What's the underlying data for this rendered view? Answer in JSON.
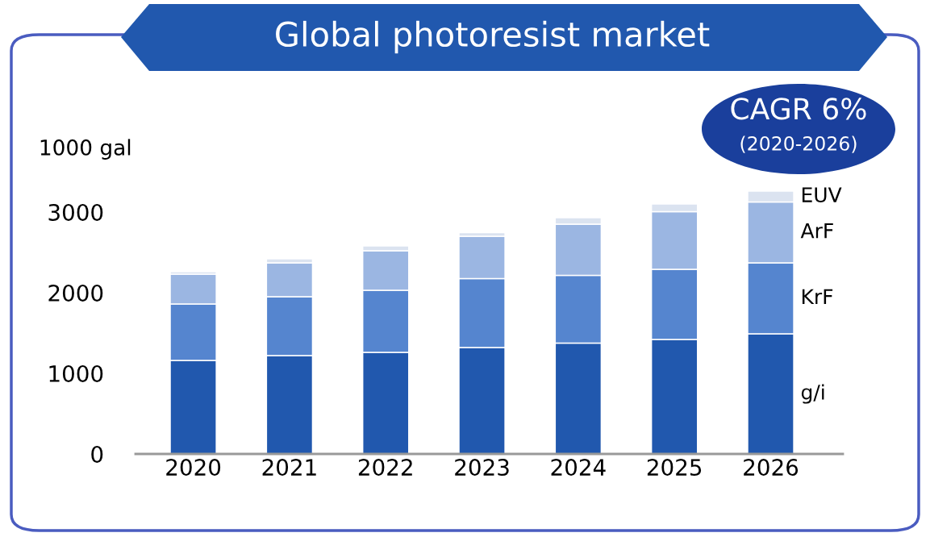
{
  "chart_data": {
    "type": "bar",
    "title": "Global photoresist market",
    "ylabel": "1000 gal",
    "categories": [
      "2020",
      "2021",
      "2022",
      "2023",
      "2024",
      "2025",
      "2026"
    ],
    "stacked": true,
    "series": [
      {
        "name": "g/i",
        "color": "#2158ae",
        "values": [
          1160,
          1220,
          1260,
          1320,
          1375,
          1420,
          1490
        ]
      },
      {
        "name": "KrF",
        "color": "#5585cf",
        "values": [
          700,
          730,
          770,
          855,
          840,
          870,
          880
        ]
      },
      {
        "name": "ArF",
        "color": "#9bb6e2",
        "values": [
          370,
          420,
          490,
          525,
          635,
          715,
          755
        ]
      },
      {
        "name": "EUV",
        "color": "#dbe3f0",
        "values": [
          30,
          50,
          60,
          45,
          80,
          95,
          135
        ]
      }
    ],
    "ylim": [
      0,
      3300
    ],
    "yticks": [
      0,
      1000,
      2000,
      3000
    ],
    "annotations": [
      "CAGR 6%",
      "(2020-2026)"
    ],
    "grid": false,
    "legend": false
  }
}
